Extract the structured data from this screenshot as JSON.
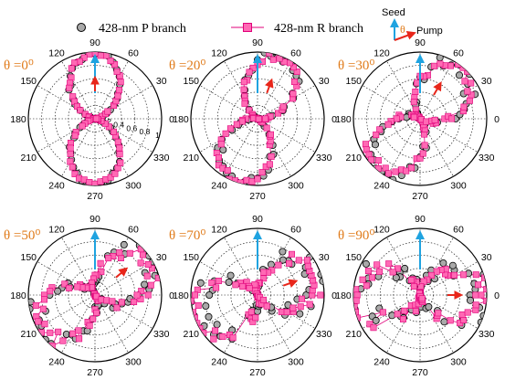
{
  "legend": {
    "p_label": "428-nm P branch",
    "r_label": "428-nm R branch"
  },
  "inset": {
    "seed": "Seed",
    "theta_symbol": "θ",
    "pump": "Pump"
  },
  "colors": {
    "p_marker_fill": "#a9a9a9",
    "p_marker_stroke": "#000000",
    "r_marker_fill": "#ff69b4",
    "r_marker_stroke": "#e0007a",
    "r_line": "#e0007a",
    "seed_arrow": "#1fa3e0",
    "pump_arrow": "#e8261a",
    "theta_text": "#e07b1a",
    "grid": "#000000"
  },
  "chart_data": [
    {
      "type": "scatter",
      "polar": true,
      "theta_label": "θ =0⁰",
      "pump_angle_deg": 90,
      "angle_ticks_deg": [
        0,
        30,
        60,
        90,
        120,
        150,
        180,
        210,
        240,
        270,
        300,
        330
      ],
      "radial_ticks": [
        "0.2",
        "0.4",
        "0.6",
        "0.8",
        "1"
      ],
      "rlim": [
        0,
        1
      ],
      "series": [
        {
          "name": "428-nm P branch",
          "pattern": "cos2",
          "center_deg": 90
        },
        {
          "name": "428-nm R branch",
          "pattern": "cos2",
          "center_deg": 90
        }
      ]
    },
    {
      "type": "scatter",
      "polar": true,
      "theta_label": "θ =20⁰",
      "pump_angle_deg": 70,
      "angle_ticks_deg": [
        0,
        30,
        60,
        90,
        120,
        150,
        180,
        210,
        240,
        270,
        300,
        330
      ],
      "rlim": [
        0,
        1
      ],
      "series": [
        {
          "name": "428-nm P branch",
          "pattern": "cos2",
          "center_deg": 70
        },
        {
          "name": "428-nm R branch",
          "pattern": "cos2",
          "center_deg": 70
        }
      ]
    },
    {
      "type": "scatter",
      "polar": true,
      "theta_label": "θ =30⁰",
      "pump_angle_deg": 60,
      "angle_ticks_deg": [
        0,
        30,
        60,
        90,
        120,
        150,
        180,
        210,
        240,
        270,
        300,
        330
      ],
      "rlim": [
        0,
        1
      ],
      "series": [
        {
          "name": "428-nm P branch",
          "pattern": "cos2",
          "center_deg": 50
        },
        {
          "name": "428-nm R branch",
          "pattern": "cos2",
          "center_deg": 50
        }
      ]
    },
    {
      "type": "scatter",
      "polar": true,
      "theta_label": "θ =50⁰",
      "pump_angle_deg": 40,
      "angle_ticks_deg": [
        0,
        30,
        60,
        90,
        120,
        150,
        180,
        210,
        240,
        270,
        300,
        330
      ],
      "rlim": [
        0,
        1
      ],
      "series": [
        {
          "name": "428-nm P branch",
          "pattern": "cos2",
          "center_deg": 30
        },
        {
          "name": "428-nm R branch",
          "pattern": "cos2",
          "center_deg": 30
        }
      ]
    },
    {
      "type": "scatter",
      "polar": true,
      "theta_label": "θ =70⁰",
      "pump_angle_deg": 20,
      "angle_ticks_deg": [
        0,
        30,
        60,
        90,
        120,
        150,
        180,
        210,
        240,
        270,
        300,
        330
      ],
      "rlim": [
        0,
        1
      ],
      "series": [
        {
          "name": "428-nm P branch",
          "pattern": "cos2",
          "center_deg": 20
        },
        {
          "name": "428-nm R branch",
          "pattern": "cos2",
          "center_deg": 20
        }
      ]
    },
    {
      "type": "scatter",
      "polar": true,
      "theta_label": "θ =90⁰",
      "pump_angle_deg": 0,
      "angle_ticks_deg": [
        0,
        30,
        60,
        90,
        120,
        150,
        180,
        210,
        240,
        270,
        300,
        330
      ],
      "rlim": [
        0,
        1
      ],
      "series": [
        {
          "name": "428-nm P branch",
          "pattern": "cos2",
          "center_deg": 0
        },
        {
          "name": "428-nm R branch",
          "pattern": "cos2",
          "center_deg": 0
        }
      ]
    }
  ]
}
